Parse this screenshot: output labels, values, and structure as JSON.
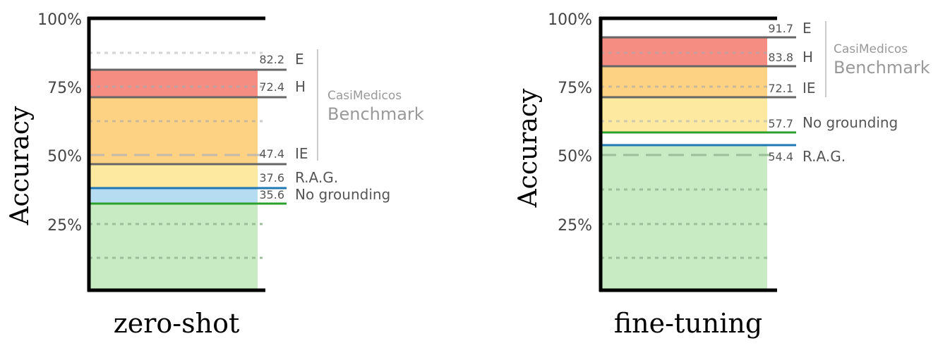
{
  "chart_data": [
    {
      "type": "bar",
      "title": "",
      "xlabel": "zero-shot",
      "ylabel": "Accuracy",
      "ylim": [
        0,
        100
      ],
      "yticks": [
        "100%",
        "75%",
        "50%",
        "25%"
      ],
      "ytick_values": [
        100,
        75,
        50,
        25
      ],
      "bracket": {
        "line1": "CasiMedicos",
        "line2": "Benchmark"
      },
      "lines": [
        {
          "value": 82.2,
          "label": "82.2",
          "name": "E",
          "color": "#666666"
        },
        {
          "value": 72.4,
          "label": "72.4",
          "name": "H",
          "color": "#666666"
        },
        {
          "value": 47.4,
          "label": "47.4",
          "name": "IE",
          "color": "#666666"
        },
        {
          "value": 37.6,
          "label": "37.6",
          "name": "R.A.G.",
          "color": "#1f77b4"
        },
        {
          "value": 35.6,
          "label": "35.6",
          "name": "No grounding",
          "color": "#2ca02c"
        }
      ]
    },
    {
      "type": "bar",
      "title": "",
      "xlabel": "fine-tuning",
      "ylabel": "Accuracy",
      "ylim": [
        0,
        100
      ],
      "yticks": [
        "100%",
        "75%",
        "50%",
        "25%"
      ],
      "ytick_values": [
        100,
        75,
        50,
        25
      ],
      "bracket": {
        "line1": "CasiMedicos",
        "line2": "Benchmark"
      },
      "lines": [
        {
          "value": 91.7,
          "label": "91.7",
          "name": "E",
          "color": "#666666"
        },
        {
          "value": 83.8,
          "label": "83.8",
          "name": "H",
          "color": "#666666"
        },
        {
          "value": 72.1,
          "label": "72.1",
          "name": "IE",
          "color": "#666666"
        },
        {
          "value": 57.7,
          "label": "57.7",
          "name": "No grounding",
          "color": "#2ca02c"
        },
        {
          "value": 54.4,
          "label": "54.4",
          "name": "R.A.G.",
          "color": "#1f77b4"
        }
      ]
    }
  ]
}
